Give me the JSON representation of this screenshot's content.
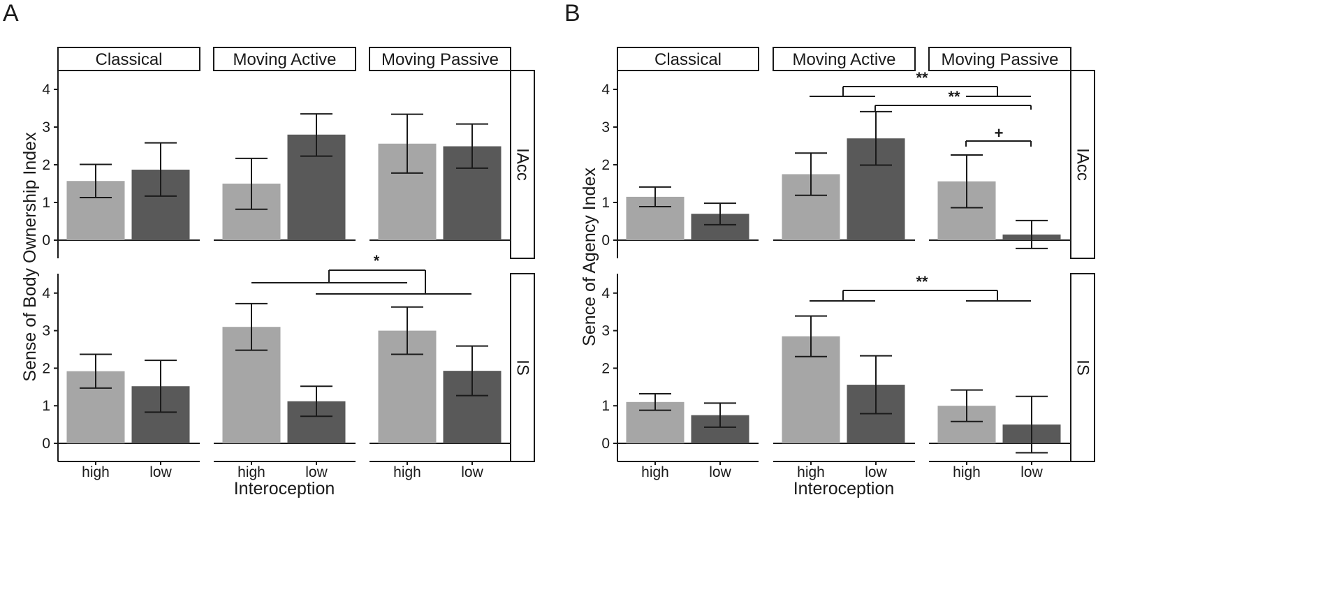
{
  "panels": [
    {
      "id": "A",
      "letter": "A",
      "ylabel": "Sense of Body Ownership Index",
      "xlabel": "Interoception",
      "columns": [
        "Classical",
        "Moving Active",
        "Moving Passive"
      ],
      "rows": [
        "IAcc",
        "IS"
      ],
      "sig_marks": [
        "*"
      ]
    },
    {
      "id": "B",
      "letter": "B",
      "ylabel": "Sence of Agency Index",
      "xlabel": "Interoception",
      "columns": [
        "Classical",
        "Moving Active",
        "Moving Passive"
      ],
      "rows": [
        "IAcc",
        "IS"
      ],
      "sig_marks": [
        "**",
        "**",
        "+",
        "**"
      ]
    }
  ],
  "chart_data": [
    {
      "type": "bar",
      "title": "A",
      "xlabel": "Interoception",
      "ylabel": "Sense of Body Ownership Index",
      "categories": [
        "high",
        "low"
      ],
      "facet_columns": [
        "Classical",
        "Moving Active",
        "Moving Passive"
      ],
      "facet_rows": [
        "IAcc",
        "IS"
      ],
      "ylim": [
        -0.5,
        4.5
      ],
      "yticks": [
        0,
        1,
        2,
        3,
        4
      ],
      "colors": {
        "high": "#a6a6a6",
        "low": "#595959"
      },
      "data": {
        "IAcc": {
          "Classical": {
            "values": [
              1.57,
              1.87
            ],
            "lower": [
              1.13,
              1.17
            ],
            "upper": [
              2.01,
              2.58
            ]
          },
          "Moving Active": {
            "values": [
              1.5,
              2.8
            ],
            "lower": [
              0.82,
              2.23
            ],
            "upper": [
              2.17,
              3.35
            ]
          },
          "Moving Passive": {
            "values": [
              2.56,
              2.49
            ],
            "lower": [
              1.78,
              1.91
            ],
            "upper": [
              3.34,
              3.08
            ]
          }
        },
        "IS": {
          "Classical": {
            "values": [
              1.92,
              1.52
            ],
            "lower": [
              1.47,
              0.83
            ],
            "upper": [
              2.37,
              2.21
            ]
          },
          "Moving Active": {
            "values": [
              3.1,
              1.12
            ],
            "lower": [
              2.48,
              0.72
            ],
            "upper": [
              3.72,
              1.52
            ]
          },
          "Moving Passive": {
            "values": [
              3.0,
              1.93
            ],
            "lower": [
              2.37,
              1.27
            ],
            "upper": [
              3.63,
              2.59
            ]
          }
        }
      },
      "significance": [
        {
          "row": "IS",
          "label": "*",
          "compares": "Moving Active vs Moving Passive"
        }
      ]
    },
    {
      "type": "bar",
      "title": "B",
      "xlabel": "Interoception",
      "ylabel": "Sence of Agency Index",
      "categories": [
        "high",
        "low"
      ],
      "facet_columns": [
        "Classical",
        "Moving Active",
        "Moving Passive"
      ],
      "facet_rows": [
        "IAcc",
        "IS"
      ],
      "ylim": [
        -0.5,
        4.5
      ],
      "yticks": [
        0,
        1,
        2,
        3,
        4
      ],
      "colors": {
        "high": "#a6a6a6",
        "low": "#595959"
      },
      "data": {
        "IAcc": {
          "Classical": {
            "values": [
              1.15,
              0.7
            ],
            "lower": [
              0.89,
              0.41
            ],
            "upper": [
              1.41,
              0.98
            ]
          },
          "Moving Active": {
            "values": [
              1.75,
              2.7
            ],
            "lower": [
              1.19,
              1.99
            ],
            "upper": [
              2.31,
              3.41
            ]
          },
          "Moving Passive": {
            "values": [
              1.56,
              0.15
            ],
            "lower": [
              0.86,
              -0.22
            ],
            "upper": [
              2.26,
              0.52
            ]
          }
        },
        "IS": {
          "Classical": {
            "values": [
              1.1,
              0.75
            ],
            "lower": [
              0.88,
              0.43
            ],
            "upper": [
              1.32,
              1.07
            ]
          },
          "Moving Active": {
            "values": [
              2.85,
              1.56
            ],
            "lower": [
              2.31,
              0.79
            ],
            "upper": [
              3.39,
              2.33
            ]
          },
          "Moving Passive": {
            "values": [
              1.0,
              0.5
            ],
            "lower": [
              0.58,
              -0.25
            ],
            "upper": [
              1.42,
              1.25
            ]
          }
        }
      },
      "significance": [
        {
          "row": "IAcc",
          "label": "**",
          "compares": "Moving Active vs Moving Passive"
        },
        {
          "row": "IAcc",
          "label": "**",
          "compares": "Moving Active low vs Moving Passive low"
        },
        {
          "row": "IAcc",
          "label": "+",
          "compares": "Moving Passive high vs low"
        },
        {
          "row": "IS",
          "label": "**",
          "compares": "Moving Active vs Moving Passive"
        }
      ]
    }
  ]
}
